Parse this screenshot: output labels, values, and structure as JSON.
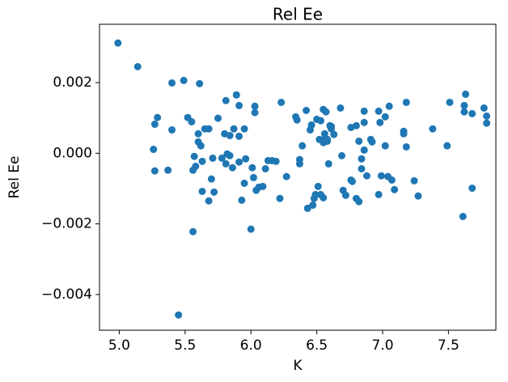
{
  "chart_data": {
    "type": "scatter",
    "title": "Rel Ee",
    "xlabel": "K",
    "ylabel": "Rel Ee",
    "color": "#1f77b4",
    "x": [
      4.99,
      5.14,
      5.4,
      5.49,
      5.61,
      5.26,
      5.29,
      5.27,
      5.27,
      5.37,
      5.4,
      5.45,
      5.52,
      5.55,
      5.56,
      5.57,
      5.58,
      5.56,
      5.6,
      5.6,
      5.62,
      5.63,
      5.63,
      5.65,
      5.68,
      5.7,
      5.71,
      5.72,
      5.68,
      5.75,
      5.78,
      5.8,
      5.81,
      5.81,
      5.82,
      5.84,
      5.84,
      5.86,
      5.87,
      5.89,
      5.91,
      5.91,
      5.91,
      5.93,
      5.95,
      5.95,
      5.96,
      6.0,
      6.01,
      6.02,
      6.03,
      6.03,
      6.04,
      6.06,
      6.09,
      6.11,
      6.13,
      6.16,
      6.19,
      6.22,
      6.23,
      6.27,
      6.34,
      6.35,
      6.37,
      6.37,
      6.39,
      6.42,
      6.43,
      6.45,
      6.46,
      6.47,
      6.48,
      6.49,
      6.5,
      6.51,
      6.52,
      6.53,
      6.53,
      6.55,
      6.55,
      6.56,
      6.56,
      6.55,
      6.57,
      6.58,
      6.58,
      6.59,
      6.6,
      6.61,
      6.61,
      6.63,
      6.68,
      6.69,
      6.7,
      6.72,
      6.76,
      6.76,
      6.77,
      6.8,
      6.8,
      6.82,
      6.82,
      6.84,
      6.84,
      6.86,
      6.86,
      6.86,
      6.88,
      6.91,
      6.92,
      6.97,
      6.97,
      6.98,
      6.99,
      7.02,
      7.02,
      7.04,
      7.05,
      7.07,
      7.09,
      7.16,
      7.16,
      7.18,
      7.18,
      7.24,
      7.27,
      7.38,
      7.49,
      7.51,
      7.61,
      7.62,
      7.62,
      7.63,
      7.68,
      7.68,
      7.77,
      7.79,
      7.79
    ],
    "y": [
      0.00312,
      0.00245,
      0.00199,
      0.00206,
      0.00197,
      0.00011,
      0.00101,
      0.00082,
      -0.0005,
      -0.00048,
      0.00066,
      -0.00458,
      0.00101,
      0.00089,
      -0.00222,
      -9e-05,
      -0.00037,
      -0.00048,
      0.00055,
      0.00032,
      0.00021,
      -0.00023,
      -0.00108,
      0.00069,
      0.00069,
      -0.00073,
      -0.00014,
      -0.0011,
      -0.00135,
      0.00099,
      -0.00014,
      0.00055,
      0.00149,
      -0.0003,
      -2e-05,
      -7e-05,
      0.0005,
      -0.00041,
      0.00069,
      0.00165,
      0.00135,
      0.00048,
      -0.00025,
      -0.00133,
      0.00069,
      -0.00085,
      -0.00016,
      -0.00215,
      -0.00041,
      -0.00069,
      0.00133,
      0.00115,
      -0.00105,
      -0.00096,
      -0.00094,
      -0.00044,
      -0.00021,
      -0.00021,
      -0.00023,
      -0.00128,
      0.00144,
      -0.00066,
      0.00103,
      0.00094,
      -0.00018,
      -0.0003,
      0.00021,
      0.00121,
      -0.00156,
      0.00066,
      0.0008,
      -0.00147,
      -0.00128,
      -0.00117,
      0.00096,
      -0.00094,
      0.00039,
      0.00092,
      -0.00117,
      0.00124,
      0.0003,
      0.00055,
      0.00039,
      -0.00126,
      0.00117,
      0.00039,
      0.00034,
      -0.0003,
      0.00078,
      0.00069,
      0.00076,
      0.00053,
      0.00128,
      -7e-05,
      -0.00105,
      -0.00119,
      0.00073,
      -0.00076,
      -0.0008,
      0.00078,
      -0.00128,
      0.00034,
      -0.00137,
      -0.00016,
      -0.00044,
      9e-05,
      0.00119,
      0.00087,
      -0.00064,
      0.00039,
      0.00032,
      0.00119,
      -0.00117,
      0.00087,
      -0.00064,
      0.00021,
      0.00103,
      -0.00066,
      0.00133,
      -0.00076,
      -0.00103,
      0.00062,
      0.00055,
      0.00144,
      0.00018,
      -0.00078,
      -0.00121,
      0.00069,
      0.00021,
      0.00144,
      -0.00179,
      0.00117,
      0.00135,
      0.00167,
      0.00112,
      -0.00099,
      0.00128,
      0.00085,
      0.00105
    ],
    "xlim": [
      4.85,
      7.86
    ],
    "xticks": [
      {
        "value": 5,
        "label": "5.0"
      },
      5.5,
      {
        "value": 6,
        "label": "6.0"
      },
      6.5,
      {
        "value": 7,
        "label": "7.0"
      },
      7.5
    ],
    "ylim": [
      -0.00501,
      0.00365
    ],
    "yticks": [
      {
        "value": -0.004,
        "label": "−0.004"
      },
      {
        "value": -0.002,
        "label": "−0.002"
      },
      {
        "value": 0,
        "label": "0.000"
      },
      0.002
    ]
  }
}
